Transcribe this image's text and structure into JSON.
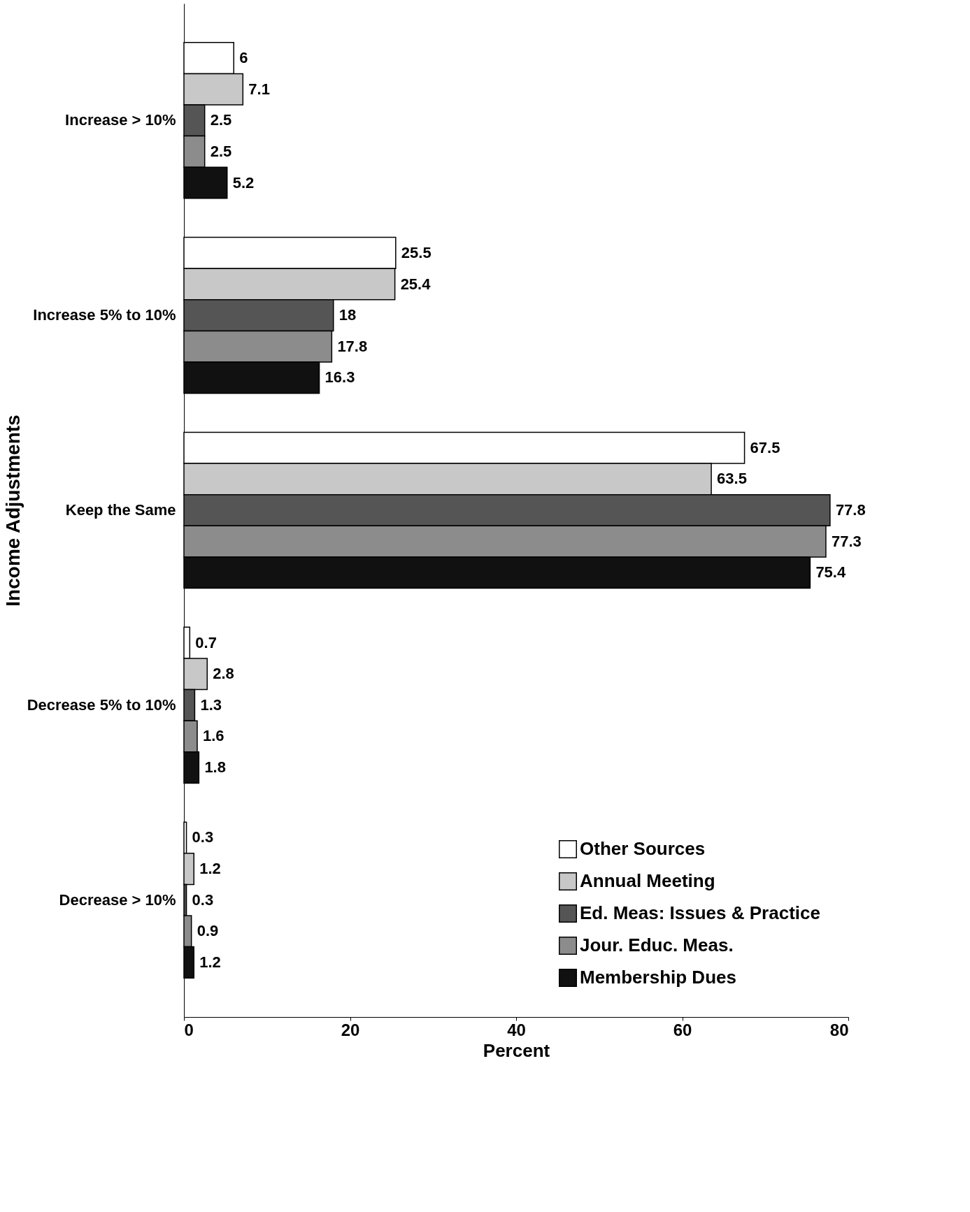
{
  "chart_data": {
    "type": "bar",
    "orientation": "horizontal",
    "xlabel": "Percent",
    "ylabel": "Income Adjustments",
    "categories": [
      "Increase > 10%",
      "Increase 5% to 10%",
      "Keep the Same",
      "Decrease 5% to 10%",
      "Decrease > 10%"
    ],
    "series": [
      {
        "name": "Other Sources",
        "color": "#ffffff",
        "values": [
          6,
          25.5,
          67.5,
          0.7,
          0.3
        ]
      },
      {
        "name": "Annual Meeting",
        "color": "#c8c8c8",
        "values": [
          7.1,
          25.4,
          63.5,
          2.8,
          1.2
        ]
      },
      {
        "name": "Ed. Meas: Issues & Practice",
        "color": "#555555",
        "values": [
          2.5,
          18,
          77.8,
          1.3,
          0.3
        ]
      },
      {
        "name": "Jour. Educ. Meas.",
        "color": "#8c8c8c",
        "values": [
          2.5,
          17.8,
          77.3,
          1.6,
          0.9
        ]
      },
      {
        "name": "Membership Dues",
        "color": "#111111",
        "values": [
          5.2,
          16.3,
          75.4,
          1.8,
          1.2
        ]
      }
    ],
    "xlim": [
      0,
      80
    ],
    "xticks": [
      0,
      20,
      40,
      60,
      80
    ],
    "grid": false,
    "legend": "bottom right",
    "data_labels": true
  }
}
